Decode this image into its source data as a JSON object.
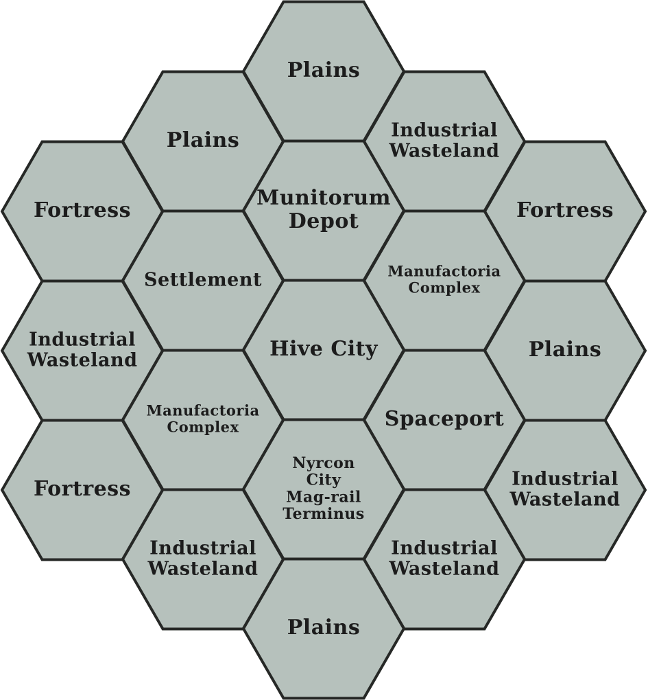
{
  "map": {
    "tile_color": "#b6c1bc",
    "border_color": "#262826",
    "text_color": "#1c1c1c",
    "tiles": [
      {
        "id": "top-plains",
        "col": 2,
        "row": 0,
        "lines": [
          "Plains"
        ]
      },
      {
        "id": "upper-left-plains",
        "col": 1,
        "row": 0,
        "lines": [
          "Plains"
        ]
      },
      {
        "id": "upper-right-industrial-wasteland",
        "col": 3,
        "row": 0,
        "lines": [
          "Industrial",
          "Wasteland"
        ]
      },
      {
        "id": "left-top-fortress",
        "col": 0,
        "row": 0,
        "lines": [
          "Fortress"
        ]
      },
      {
        "id": "munitorum-depot",
        "col": 2,
        "row": 1,
        "lines": [
          "Munitorum",
          "Depot"
        ]
      },
      {
        "id": "right-top-fortress",
        "col": 4,
        "row": 0,
        "lines": [
          "Fortress"
        ]
      },
      {
        "id": "settlement",
        "col": 1,
        "row": 1,
        "lines": [
          "Settlement"
        ]
      },
      {
        "id": "right-manufactoria-complex",
        "col": 3,
        "row": 1,
        "lines": [
          "Manufactoria",
          "Complex"
        ]
      },
      {
        "id": "left-industrial-wasteland",
        "col": 0,
        "row": 1,
        "lines": [
          "Industrial",
          "Wasteland"
        ]
      },
      {
        "id": "hive-city",
        "col": 2,
        "row": 2,
        "lines": [
          "Hive City"
        ]
      },
      {
        "id": "right-plains",
        "col": 4,
        "row": 1,
        "lines": [
          "Plains"
        ]
      },
      {
        "id": "left-manufactoria-complex",
        "col": 1,
        "row": 2,
        "lines": [
          "Manufactoria",
          "Complex"
        ]
      },
      {
        "id": "spaceport",
        "col": 3,
        "row": 2,
        "lines": [
          "Spaceport"
        ]
      },
      {
        "id": "left-bottom-fortress",
        "col": 0,
        "row": 2,
        "lines": [
          "Fortress"
        ]
      },
      {
        "id": "nyrcon-city-mag-rail-terminus",
        "col": 2,
        "row": 3,
        "lines": [
          "Nyrcon",
          "City",
          "Mag-rail",
          "Terminus"
        ]
      },
      {
        "id": "right-industrial-wasteland",
        "col": 4,
        "row": 2,
        "lines": [
          "Industrial",
          "Wasteland"
        ]
      },
      {
        "id": "lower-left-industrial-wasteland",
        "col": 1,
        "row": 3,
        "lines": [
          "Industrial",
          "Wasteland"
        ]
      },
      {
        "id": "lower-right-industrial-wasteland",
        "col": 3,
        "row": 3,
        "lines": [
          "Industrial",
          "Wasteland"
        ]
      },
      {
        "id": "bottom-plains",
        "col": 2,
        "row": 4,
        "lines": [
          "Plains"
        ]
      }
    ]
  }
}
